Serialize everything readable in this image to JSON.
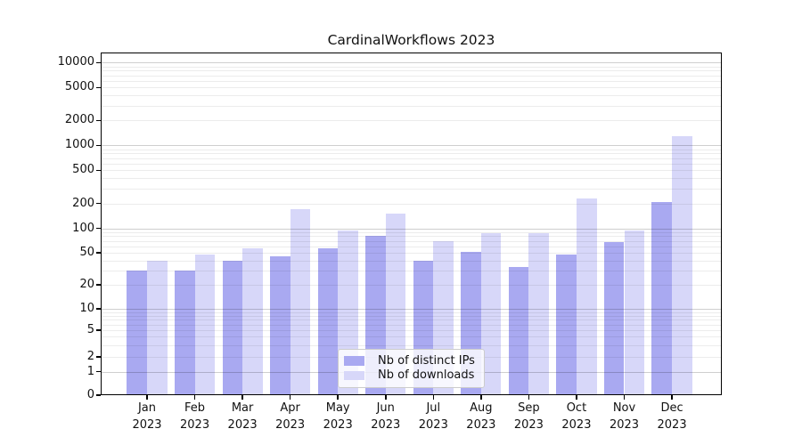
{
  "chart_data": {
    "type": "bar",
    "title": "CardinalWorkflows 2023",
    "categories": [
      "Jan",
      "Feb",
      "Mar",
      "Apr",
      "May",
      "Jun",
      "Jul",
      "Aug",
      "Sep",
      "Oct",
      "Nov",
      "Dec"
    ],
    "category_year": "2023",
    "series": [
      {
        "name": "Nb of distinct IPs",
        "color": "#a9a9f1",
        "values": [
          30,
          30,
          40,
          45,
          56,
          80,
          40,
          51,
          33,
          47,
          68,
          210
        ]
      },
      {
        "name": "Nb of downloads",
        "color": "#d7d7f9",
        "values": [
          40,
          47,
          57,
          170,
          94,
          150,
          70,
          88,
          88,
          230,
          94,
          1300
        ]
      }
    ],
    "yaxis": {
      "scale": "symlog",
      "ticks": [
        0,
        1,
        2,
        5,
        10,
        20,
        50,
        100,
        200,
        500,
        1000,
        2000,
        5000,
        10000
      ],
      "range": [
        0,
        13000
      ],
      "grid": true
    },
    "legend": {
      "position": "lower center",
      "entries": [
        "Nb of distinct IPs",
        "Nb of downloads"
      ]
    }
  }
}
